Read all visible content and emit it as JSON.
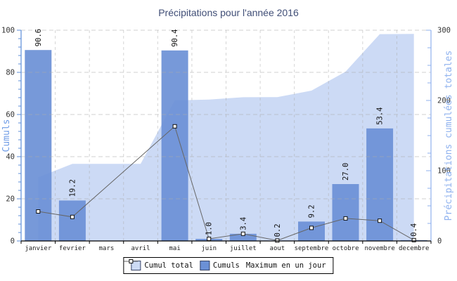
{
  "title": "Précipitations pour l'année 2016",
  "left_axis": {
    "label": "Cumuls",
    "ticks": [
      0,
      20,
      40,
      60,
      80,
      100
    ],
    "max": 100
  },
  "right_axis": {
    "label": "Précipitations cumulées totales",
    "ticks": [
      0,
      100,
      200,
      300
    ],
    "max": 300
  },
  "legend": {
    "items": [
      "Cumul total",
      "Cumuls",
      "Maximum en un jour"
    ]
  },
  "colors": {
    "bar": "#6b90d6",
    "area": "#ccdaf5",
    "line": "#666666",
    "marker_fill": "#ffffff",
    "marker_stroke": "#111111",
    "axis_left": "#5b8dd9",
    "axis_right": "#8fb0ee",
    "axis_label_left": "#6f9ce6",
    "axis_label_right": "#8fb2ef",
    "title": "#414f77",
    "grid": "#ababab",
    "tick_text": "#333333",
    "x_axis": "#000000"
  },
  "chart_data": {
    "type": "combo",
    "title": "Précipitations pour l'année 2016",
    "categories": [
      "janvier",
      "fevrier",
      "mars",
      "avril",
      "mai",
      "juin",
      "juillet",
      "aout",
      "septembre",
      "octobre",
      "novembre",
      "decembre"
    ],
    "series": [
      {
        "name": "Cumul total",
        "type": "area",
        "axis": "right",
        "values": [
          90.6,
          109.8,
          109.8,
          109.8,
          200.2,
          201.2,
          204.6,
          204.8,
          214.0,
          241.0,
          294.4,
          294.8
        ]
      },
      {
        "name": "Cumuls",
        "type": "bar",
        "axis": "left",
        "values": [
          90.6,
          19.2,
          null,
          null,
          90.4,
          1.0,
          3.4,
          0.2,
          9.2,
          27.0,
          53.4,
          0.4
        ],
        "labels": [
          "90.6",
          "19.2",
          null,
          null,
          "90.4",
          "1.0",
          "3.4",
          "0.2",
          "9.2",
          "27.0",
          "53.4",
          "0.4"
        ]
      },
      {
        "name": "Maximum en un jour",
        "type": "line",
        "axis": "left",
        "values": [
          14.0,
          11.4,
          null,
          null,
          54.4,
          1.0,
          3.4,
          0.2,
          6.2,
          10.7,
          9.6,
          0.4
        ]
      }
    ],
    "ylabel_left": "Cumuls",
    "ylabel_right": "Précipitations cumulées totales",
    "ylim_left": [
      0,
      100
    ],
    "ylim_right": [
      0,
      300
    ],
    "grid": true,
    "legend_position": "bottom"
  }
}
